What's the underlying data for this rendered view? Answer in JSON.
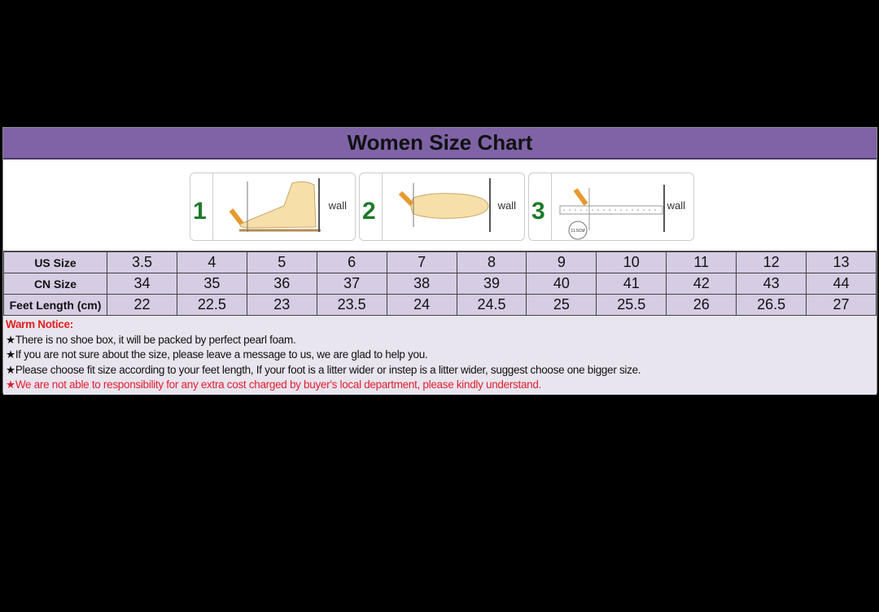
{
  "title": "Women Size Chart",
  "steps": [
    {
      "number": "1",
      "label": "wall"
    },
    {
      "number": "2",
      "label": "wall"
    },
    {
      "number": "3",
      "label": "wall",
      "measure": "11.5CM"
    }
  ],
  "table": {
    "rows": [
      {
        "header": "US Size",
        "values": [
          "3.5",
          "4",
          "5",
          "6",
          "7",
          "8",
          "9",
          "10",
          "11",
          "12",
          "13"
        ]
      },
      {
        "header": "CN Size",
        "values": [
          "34",
          "35",
          "36",
          "37",
          "38",
          "39",
          "40",
          "41",
          "42",
          "43",
          "44"
        ]
      },
      {
        "header": "Feet Length (cm)",
        "values": [
          "22",
          "22.5",
          "23",
          "23.5",
          "24",
          "24.5",
          "25",
          "25.5",
          "26",
          "26.5",
          "27"
        ]
      }
    ]
  },
  "notice": {
    "title": "Warm Notice:",
    "star": "★",
    "items": [
      {
        "text": "There is no shoe box, it will be packed by perfect pearl foam.",
        "color": "#111111"
      },
      {
        "text": "If you are not sure about the size, please leave a message to us, we are glad to help you.",
        "color": "#111111"
      },
      {
        "text": "Please choose fit size according to your feet length, If your foot is a litter wider or instep is a litter wider, suggest choose one bigger size.",
        "color": "#111111"
      },
      {
        "text": "We are not able to responsibility for any extra cost charged by buyer's local department, please kindly understand.",
        "color": "#e02030"
      }
    ]
  },
  "colors": {
    "header": "#7f63a6",
    "table": "#d6cce4",
    "notice_bg": "#e9e5ef",
    "notice_title": "#e02020"
  }
}
